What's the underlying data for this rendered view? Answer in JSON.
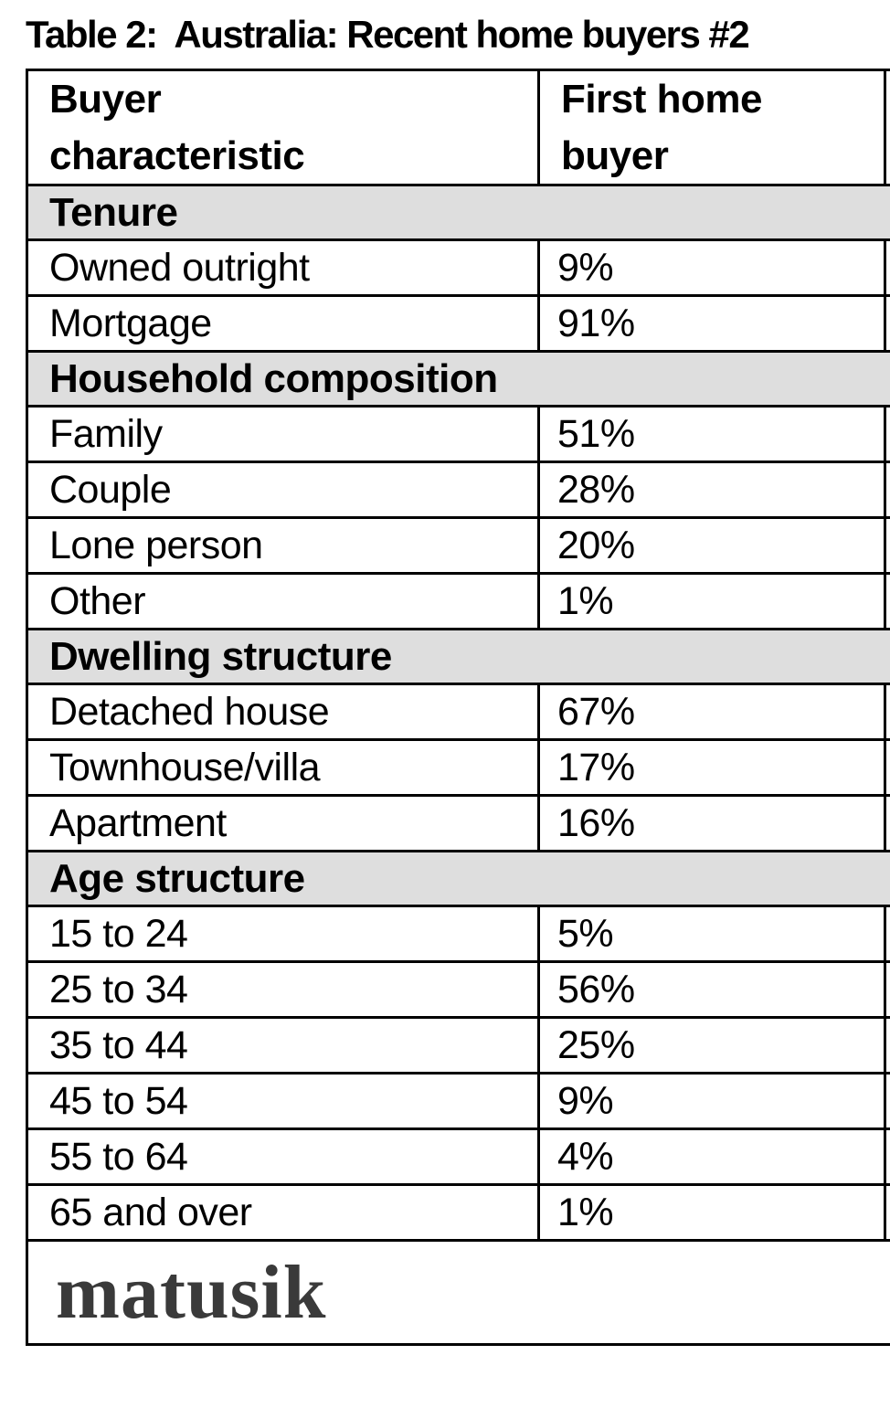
{
  "title": "Table 2:  Australia: Recent home buyers #2",
  "table": {
    "columns": [
      {
        "line1": "Buyer",
        "line2": "characteristic"
      },
      {
        "line1": "First home",
        "line2": "buyer"
      },
      {
        "line1": "",
        "line2": ""
      }
    ],
    "sections": [
      {
        "header": "Tenure",
        "rows": [
          [
            "Owned outright",
            "9%"
          ],
          [
            "Mortgage",
            "91%"
          ]
        ]
      },
      {
        "header": "Household composition",
        "rows": [
          [
            "Family",
            "51%"
          ],
          [
            "Couple",
            "28%"
          ],
          [
            "Lone person",
            "20%"
          ],
          [
            "Other",
            "1%"
          ]
        ]
      },
      {
        "header": "Dwelling structure",
        "rows": [
          [
            "Detached house",
            "67%"
          ],
          [
            "Townhouse/villa",
            "17%"
          ],
          [
            "Apartment",
            "16%"
          ]
        ]
      },
      {
        "header": "Age structure",
        "rows": [
          [
            "15 to 24",
            "5%"
          ],
          [
            "25 to 34",
            "56%"
          ],
          [
            "35 to 44",
            "25%"
          ],
          [
            "45 to 54",
            "9%"
          ],
          [
            "55 to 64",
            "4%"
          ],
          [
            "65 and over",
            "1%"
          ]
        ]
      }
    ],
    "footer_logo": "matusik"
  },
  "colors": {
    "background": "#ffffff",
    "border": "#000000",
    "text": "#000000",
    "section_row_bg": "#dedede",
    "logo_text": "#3a3a3a"
  }
}
